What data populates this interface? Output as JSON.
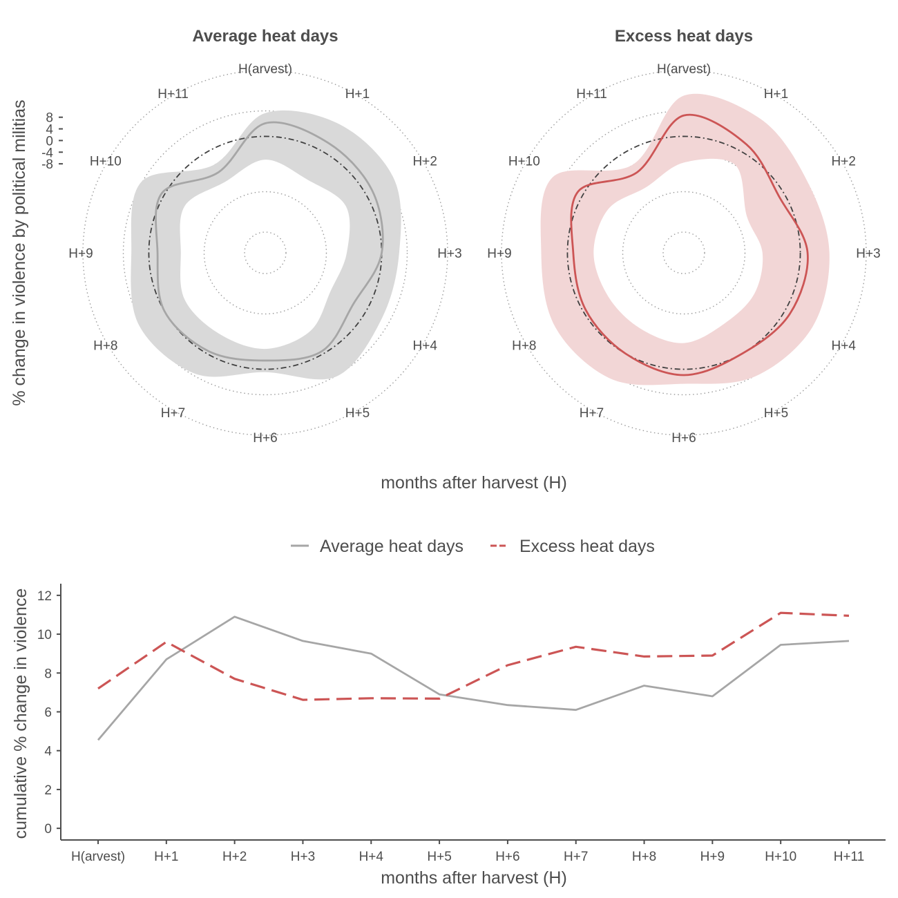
{
  "x_title": "months after harvest (H)",
  "colors": {
    "average": "#a6a6a6",
    "excess": "#cc5555",
    "average_band": "#d9d9d9",
    "excess_band": "#f2d6d6",
    "text": "#4d4d4d"
  },
  "chart_data": [
    {
      "type": "radar",
      "ylabel": "% change in violence by political militias",
      "radial_ticks": [
        8,
        4,
        0,
        -4,
        -8
      ],
      "radial_range": [
        -40,
        16
      ],
      "grid": true,
      "panels": [
        {
          "title": "Average heat days",
          "color_key": "average",
          "categories": [
            "H(arvest)",
            "H+1",
            "H+2",
            "H+3",
            "H+4",
            "H+5",
            "H+6",
            "H+7",
            "H+8",
            "H+9",
            "H+10",
            "H+11"
          ],
          "values": [
            4.5,
            3.5,
            2.5,
            0,
            -5,
            -1,
            -3,
            -1,
            0,
            -3,
            1,
            -8
          ],
          "lower": [
            -8,
            -11,
            -8,
            -12,
            -14,
            -9,
            -7,
            -8,
            -8,
            -11,
            -8,
            -12
          ],
          "upper": [
            8,
            11,
            11,
            6,
            6,
            9,
            1,
            8,
            10,
            6,
            9,
            -5
          ]
        },
        {
          "title": "Excess heat days",
          "color_key": "excess",
          "categories": [
            "H(arvest)",
            "H+1",
            "H+2",
            "H+3",
            "H+4",
            "H+5",
            "H+6",
            "H+7",
            "H+8",
            "H+9",
            "H+10",
            "H+11"
          ],
          "values": [
            7.2,
            3,
            -2,
            2.5,
            2,
            0,
            2,
            0,
            -1,
            -2,
            2,
            -8
          ],
          "lower": [
            -9,
            -5,
            -15,
            -13,
            -12,
            -12,
            -9,
            -10,
            -10,
            -9,
            -10,
            -14
          ],
          "upper": [
            14,
            13,
            9,
            10,
            11,
            9,
            5,
            10,
            11,
            9,
            12,
            -5
          ]
        }
      ]
    },
    {
      "type": "line",
      "xlabel": "months after harvest (H)",
      "ylabel": "cumulative % change in violence",
      "categories": [
        "H(arvest)",
        "H+1",
        "H+2",
        "H+3",
        "H+4",
        "H+5",
        "H+6",
        "H+7",
        "H+8",
        "H+9",
        "H+10",
        "H+11"
      ],
      "yticks": [
        0,
        2,
        4,
        6,
        8,
        10,
        12
      ],
      "ylim": [
        -0.6,
        12.6
      ],
      "legend": "top",
      "series": [
        {
          "name": "Average heat days",
          "color_key": "average",
          "dash": "solid",
          "values": [
            4.55,
            8.7,
            10.9,
            9.65,
            9.0,
            6.9,
            6.35,
            6.1,
            7.35,
            6.8,
            9.45,
            9.65
          ]
        },
        {
          "name": "Excess heat days",
          "color_key": "excess",
          "dash": "dashed",
          "values": [
            7.2,
            9.6,
            7.7,
            6.62,
            6.7,
            6.68,
            8.4,
            9.35,
            8.85,
            8.9,
            11.1,
            10.95
          ]
        }
      ]
    }
  ]
}
